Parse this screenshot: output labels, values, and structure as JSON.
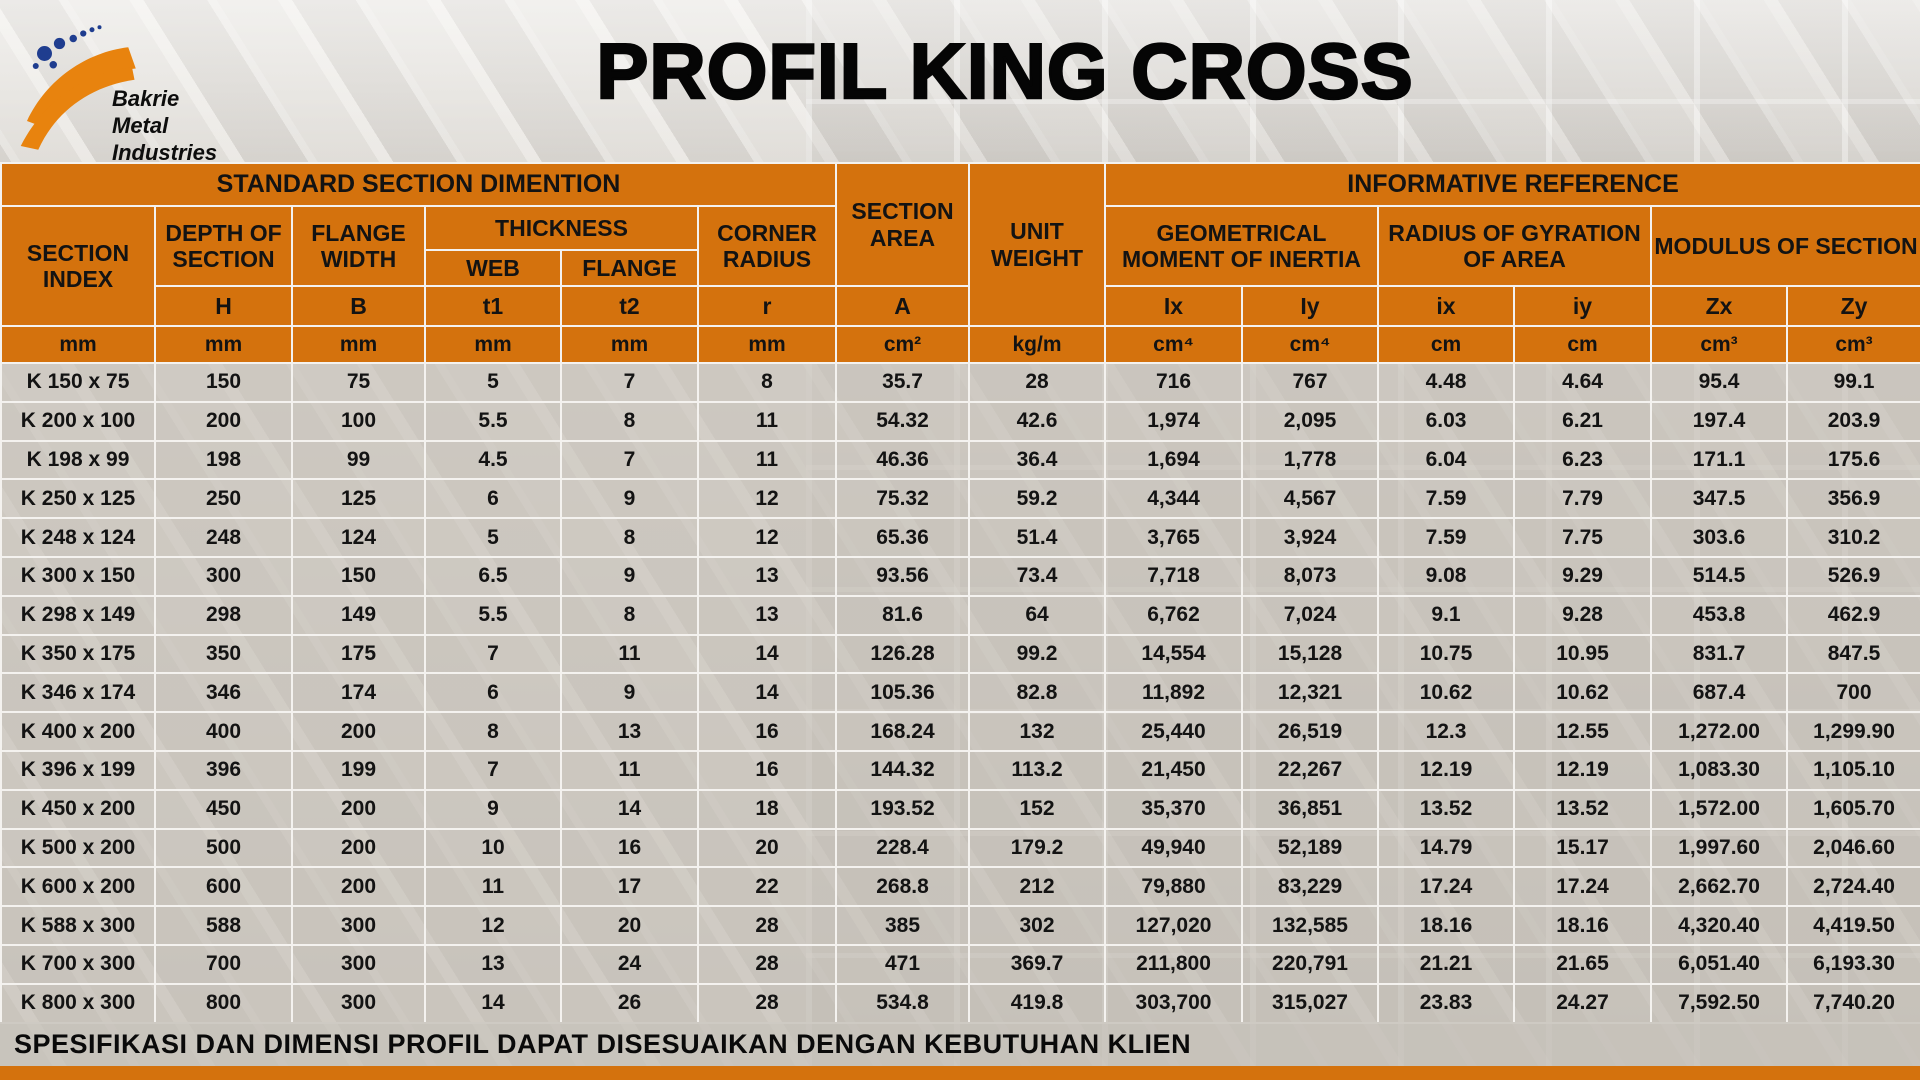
{
  "brand": {
    "lines": [
      "Bakrie",
      "Metal",
      "Industries"
    ]
  },
  "title": "PROFIL KING CROSS",
  "footer": "SPESIFIKASI DAN DIMENSI PROFIL DAPAT DISESUAIKAN DENGAN KEBUTUHAN KLIEN",
  "colors": {
    "header_orange": "#D4720D",
    "logo_orange": "#E8830E",
    "logo_navy": "#1F3D8F",
    "grid_line": "#F4F2EF",
    "row_gray": "#CEC9C1"
  },
  "table": {
    "header": {
      "standard_section": "STANDARD SECTION DIMENTION",
      "informative_reference": "INFORMATIVE REFERENCE",
      "section_index": "SECTION INDEX",
      "depth_of_section": "DEPTH OF SECTION",
      "flange_width": "FLANGE WIDTH",
      "thickness": "THICKNESS",
      "web": "WEB",
      "flange": "FLANGE",
      "corner_radius": "CORNER RADIUS",
      "section_area": "SECTION AREA",
      "unit_weight": "UNIT WEIGHT",
      "geometrical_moment_of_inertia": "GEOMETRICAL MOMENT OF INERTIA",
      "radius_of_gyration_of_area": "RADIUS OF GYRATION OF AREA",
      "modulus_of_section": "MODULUS OF SECTION"
    },
    "symbols": [
      "H",
      "B",
      "t1",
      "t2",
      "r",
      "A",
      "Ix",
      "Iy",
      "ix",
      "iy",
      "Zx",
      "Zy"
    ],
    "units": [
      "mm",
      "mm",
      "mm",
      "mm",
      "mm",
      "mm",
      "cm²",
      "kg/m",
      "cm⁴",
      "cm⁴",
      "cm",
      "cm",
      "cm³",
      "cm³"
    ],
    "rows": [
      [
        "K 150 x 75",
        "150",
        "75",
        "5",
        "7",
        "8",
        "35.7",
        "28",
        "716",
        "767",
        "4.48",
        "4.64",
        "95.4",
        "99.1"
      ],
      [
        "K 200 x 100",
        "200",
        "100",
        "5.5",
        "8",
        "11",
        "54.32",
        "42.6",
        "1,974",
        "2,095",
        "6.03",
        "6.21",
        "197.4",
        "203.9"
      ],
      [
        "K 198 x 99",
        "198",
        "99",
        "4.5",
        "7",
        "11",
        "46.36",
        "36.4",
        "1,694",
        "1,778",
        "6.04",
        "6.23",
        "171.1",
        "175.6"
      ],
      [
        "K 250 x 125",
        "250",
        "125",
        "6",
        "9",
        "12",
        "75.32",
        "59.2",
        "4,344",
        "4,567",
        "7.59",
        "7.79",
        "347.5",
        "356.9"
      ],
      [
        "K 248 x 124",
        "248",
        "124",
        "5",
        "8",
        "12",
        "65.36",
        "51.4",
        "3,765",
        "3,924",
        "7.59",
        "7.75",
        "303.6",
        "310.2"
      ],
      [
        "K 300 x 150",
        "300",
        "150",
        "6.5",
        "9",
        "13",
        "93.56",
        "73.4",
        "7,718",
        "8,073",
        "9.08",
        "9.29",
        "514.5",
        "526.9"
      ],
      [
        "K 298 x 149",
        "298",
        "149",
        "5.5",
        "8",
        "13",
        "81.6",
        "64",
        "6,762",
        "7,024",
        "9.1",
        "9.28",
        "453.8",
        "462.9"
      ],
      [
        "K 350 x 175",
        "350",
        "175",
        "7",
        "11",
        "14",
        "126.28",
        "99.2",
        "14,554",
        "15,128",
        "10.75",
        "10.95",
        "831.7",
        "847.5"
      ],
      [
        "K 346 x 174",
        "346",
        "174",
        "6",
        "9",
        "14",
        "105.36",
        "82.8",
        "11,892",
        "12,321",
        "10.62",
        "10.62",
        "687.4",
        "700"
      ],
      [
        "K 400 x 200",
        "400",
        "200",
        "8",
        "13",
        "16",
        "168.24",
        "132",
        "25,440",
        "26,519",
        "12.3",
        "12.55",
        "1,272.00",
        "1,299.90"
      ],
      [
        "K 396 x 199",
        "396",
        "199",
        "7",
        "11",
        "16",
        "144.32",
        "113.2",
        "21,450",
        "22,267",
        "12.19",
        "12.19",
        "1,083.30",
        "1,105.10"
      ],
      [
        "K 450 x 200",
        "450",
        "200",
        "9",
        "14",
        "18",
        "193.52",
        "152",
        "35,370",
        "36,851",
        "13.52",
        "13.52",
        "1,572.00",
        "1,605.70"
      ],
      [
        "K 500 x 200",
        "500",
        "200",
        "10",
        "16",
        "20",
        "228.4",
        "179.2",
        "49,940",
        "52,189",
        "14.79",
        "15.17",
        "1,997.60",
        "2,046.60"
      ],
      [
        "K 600 x 200",
        "600",
        "200",
        "11",
        "17",
        "22",
        "268.8",
        "212",
        "79,880",
        "83,229",
        "17.24",
        "17.24",
        "2,662.70",
        "2,724.40"
      ],
      [
        "K 588 x 300",
        "588",
        "300",
        "12",
        "20",
        "28",
        "385",
        "302",
        "127,020",
        "132,585",
        "18.16",
        "18.16",
        "4,320.40",
        "4,419.50"
      ],
      [
        "K 700 x 300",
        "700",
        "300",
        "13",
        "24",
        "28",
        "471",
        "369.7",
        "211,800",
        "220,791",
        "21.21",
        "21.65",
        "6,051.40",
        "6,193.30"
      ],
      [
        "K 800 x 300",
        "800",
        "300",
        "14",
        "26",
        "28",
        "534.8",
        "419.8",
        "303,700",
        "315,027",
        "23.83",
        "24.27",
        "7,592.50",
        "7,740.20"
      ]
    ]
  }
}
